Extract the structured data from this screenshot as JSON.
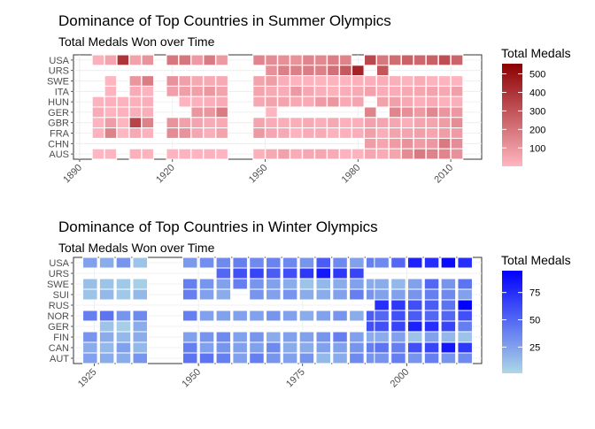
{
  "chart_data": [
    {
      "type": "heatmap",
      "title": "Dominance of Top Countries in Summer Olympics",
      "subtitle": "Total Medals Won over Time",
      "xlabel": "",
      "ylabel": "",
      "countries": [
        "USA",
        "URS",
        "SWE",
        "ITA",
        "HUN",
        "GER",
        "GBR",
        "FRA",
        "CHN",
        "AUS"
      ],
      "years": [
        1896,
        1900,
        1904,
        1908,
        1912,
        1920,
        1924,
        1928,
        1932,
        1936,
        1948,
        1952,
        1956,
        1960,
        1964,
        1968,
        1972,
        1976,
        1980,
        1984,
        1988,
        1992,
        1996,
        2000,
        2004,
        2008,
        2012
      ],
      "xticks": [
        1890,
        1920,
        1950,
        1980,
        2010
      ],
      "xlim": [
        1888,
        2020
      ],
      "grid": true,
      "legend": {
        "title": "Total Medals",
        "ticks": [
          100,
          200,
          300,
          400,
          500
        ],
        "range": [
          1,
          555
        ],
        "low_color": "#ffb6c1",
        "high_color": "#8b0000",
        "position": "right"
      },
      "values": {
        "USA": [
          20,
          55,
          394,
          63,
          105,
          192,
          197,
          85,
          180,
          90,
          151,
          130,
          118,
          112,
          150,
          140,
          172,
          155,
          null,
          333,
          193,
          224,
          260,
          242,
          263,
          315,
          248
        ],
        "URS": [
          null,
          null,
          null,
          null,
          null,
          null,
          null,
          null,
          null,
          null,
          null,
          117,
          169,
          169,
          174,
          163,
          214,
          285,
          442,
          null,
          294,
          null,
          null,
          null,
          null,
          null,
          null
        ],
        "SWE": [
          null,
          1,
          null,
          98,
          173,
          111,
          68,
          41,
          38,
          38,
          60,
          77,
          25,
          12,
          12,
          8,
          12,
          5,
          20,
          21,
          25,
          23,
          10,
          32,
          11,
          7,
          7
        ],
        "ITA": [
          null,
          6,
          null,
          30,
          10,
          70,
          73,
          68,
          92,
          60,
          57,
          37,
          30,
          88,
          43,
          25,
          17,
          27,
          39,
          63,
          27,
          30,
          42,
          50,
          60,
          40,
          68
        ],
        "HUN": [
          10,
          18,
          10,
          20,
          25,
          null,
          8,
          15,
          24,
          33,
          45,
          60,
          57,
          42,
          35,
          82,
          95,
          38,
          54,
          null,
          63,
          70,
          42,
          22,
          34,
          17,
          22
        ],
        "GER": [
          30,
          6,
          15,
          25,
          25,
          null,
          null,
          96,
          99,
          182,
          null,
          5,
          null,
          null,
          null,
          null,
          null,
          null,
          null,
          154,
          null,
          150,
          120,
          85,
          145,
          98,
          94
        ],
        "GBR": [
          8,
          80,
          4,
          347,
          160,
          107,
          66,
          55,
          34,
          37,
          55,
          30,
          26,
          26,
          37,
          24,
          40,
          20,
          21,
          62,
          52,
          48,
          26,
          56,
          57,
          80,
          126
        ],
        "FRA": [
          12,
          158,
          2,
          40,
          14,
          130,
          110,
          50,
          25,
          60,
          90,
          50,
          40,
          12,
          30,
          35,
          13,
          20,
          25,
          67,
          25,
          60,
          57,
          68,
          53,
          77,
          82
        ],
        "CHN": [
          null,
          null,
          null,
          null,
          null,
          null,
          null,
          null,
          null,
          null,
          null,
          null,
          null,
          null,
          null,
          null,
          null,
          null,
          null,
          76,
          53,
          83,
          110,
          79,
          94,
          184,
          125
        ],
        "AUS": [
          2,
          5,
          null,
          19,
          10,
          8,
          12,
          7,
          15,
          5,
          20,
          40,
          66,
          30,
          45,
          50,
          35,
          12,
          12,
          50,
          35,
          57,
          132,
          183,
          157,
          149,
          114
        ]
      }
    },
    {
      "type": "heatmap",
      "title": "Dominance of Top Countries in Winter Olympics",
      "subtitle": "Total Medals Won over Time",
      "xlabel": "",
      "ylabel": "",
      "countries": [
        "USA",
        "URS",
        "SWE",
        "SUI",
        "RUS",
        "NOR",
        "GER",
        "FIN",
        "CAN",
        "AUT"
      ],
      "years": [
        1924,
        1928,
        1932,
        1936,
        1948,
        1952,
        1956,
        1960,
        1964,
        1968,
        1972,
        1976,
        1980,
        1984,
        1988,
        1992,
        1994,
        1998,
        2002,
        2006,
        2010,
        2014
      ],
      "xticks": [
        1925,
        1950,
        1975,
        2000
      ],
      "xlim": [
        1920,
        2018
      ],
      "grid": true,
      "legend": {
        "title": "Total Medals",
        "ticks": [
          25,
          50,
          75
        ],
        "range": [
          1,
          95
        ],
        "low_color": "#add8e6",
        "high_color": "#0000ff",
        "position": "right"
      },
      "values": {
        "USA": [
          25,
          20,
          30,
          10,
          28,
          33,
          35,
          40,
          35,
          38,
          36,
          30,
          55,
          35,
          25,
          40,
          35,
          50,
          80,
          75,
          90,
          75
        ],
        "URS": [
          null,
          null,
          null,
          null,
          null,
          null,
          50,
          60,
          65,
          55,
          60,
          70,
          85,
          70,
          65,
          null,
          null,
          null,
          null,
          null,
          null,
          null
        ],
        "SWE": [
          12,
          10,
          8,
          5,
          40,
          30,
          25,
          40,
          30,
          25,
          20,
          10,
          15,
          20,
          25,
          20,
          20,
          15,
          25,
          50,
          30,
          45
        ],
        "SUI": [
          10,
          15,
          8,
          15,
          40,
          25,
          20,
          null,
          30,
          25,
          30,
          20,
          20,
          25,
          40,
          30,
          25,
          25,
          30,
          40,
          35,
          25
        ],
        "RUS": [
          null,
          null,
          null,
          null,
          null,
          null,
          null,
          null,
          null,
          null,
          null,
          null,
          null,
          null,
          null,
          null,
          75,
          70,
          60,
          55,
          45,
          95
        ],
        "NOR": [
          40,
          45,
          30,
          35,
          40,
          25,
          25,
          25,
          25,
          30,
          25,
          20,
          25,
          30,
          20,
          55,
          50,
          60,
          55,
          50,
          50,
          60
        ],
        "GER": [
          null,
          10,
          5,
          20,
          null,
          null,
          null,
          null,
          null,
          null,
          null,
          null,
          null,
          null,
          null,
          60,
          60,
          65,
          80,
          75,
          65,
          40
        ],
        "FIN": [
          30,
          20,
          15,
          20,
          25,
          30,
          35,
          25,
          30,
          20,
          25,
          25,
          30,
          40,
          25,
          20,
          20,
          25,
          10,
          25,
          15,
          10
        ],
        "CAN": [
          20,
          15,
          25,
          15,
          40,
          25,
          30,
          25,
          25,
          35,
          20,
          20,
          25,
          25,
          30,
          40,
          45,
          40,
          60,
          65,
          85,
          70
        ],
        "AUT": [
          25,
          20,
          20,
          30,
          45,
          45,
          40,
          25,
          40,
          30,
          25,
          30,
          15,
          20,
          35,
          30,
          30,
          40,
          30,
          40,
          30,
          35
        ]
      }
    }
  ]
}
